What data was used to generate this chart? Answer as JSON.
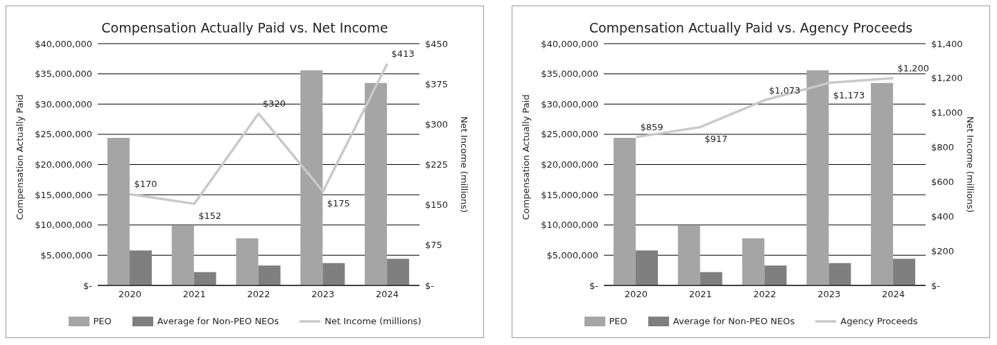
{
  "chart_data": [
    {
      "type": "bar",
      "title": "Compensation Actually Paid vs. Net Income",
      "ylabel": "Compensation Actually Paid",
      "y2label": "Net Income (millions)",
      "categories": [
        "2020",
        "2021",
        "2022",
        "2023",
        "2024"
      ],
      "series": [
        {
          "name": "PEO",
          "color": "#a5a5a5",
          "values": [
            24400000,
            9900000,
            7800000,
            35600000,
            33500000
          ]
        },
        {
          "name": "Average for Non-PEO NEOs",
          "color": "#7f7f7f",
          "values": [
            5800000,
            2200000,
            3300000,
            3700000,
            4400000
          ]
        },
        {
          "name": "Net Income (millions)",
          "type": "line",
          "axis": "y2",
          "color": "#c9c9c9",
          "marker": "none",
          "values": [
            170,
            152,
            320,
            175,
            413
          ],
          "value_labels": [
            "$170",
            "$152",
            "$320",
            "$175",
            "$413"
          ]
        }
      ],
      "ylim": [
        0,
        40000000
      ],
      "yticks": [
        {
          "value": 0,
          "label": "$-"
        },
        {
          "value": 5000000,
          "label": "$5,000,000"
        },
        {
          "value": 10000000,
          "label": "$10,000,000"
        },
        {
          "value": 15000000,
          "label": "$15,000,000"
        },
        {
          "value": 20000000,
          "label": "$20,000,000"
        },
        {
          "value": 25000000,
          "label": "$25,000,000"
        },
        {
          "value": 30000000,
          "label": "$30,000,000"
        },
        {
          "value": 35000000,
          "label": "$35,000,000"
        },
        {
          "value": 40000000,
          "label": "$40,000,000"
        }
      ],
      "y2lim": [
        0,
        450
      ],
      "y2ticks": [
        {
          "value": 0,
          "label": "$-"
        },
        {
          "value": 75,
          "label": "$75"
        },
        {
          "value": 150,
          "label": "$150"
        },
        {
          "value": 225,
          "label": "$225"
        },
        {
          "value": 300,
          "label": "$300"
        },
        {
          "value": 375,
          "label": "$375"
        },
        {
          "value": 450,
          "label": "$450"
        }
      ],
      "grid": "y",
      "legend": "bottom"
    },
    {
      "type": "bar",
      "title": "Compensation Actually Paid vs. Agency Proceeds",
      "ylabel": "Compensation Actually Paid",
      "y2label": "Net Income (millions)",
      "categories": [
        "2020",
        "2021",
        "2022",
        "2023",
        "2024"
      ],
      "series": [
        {
          "name": "PEO",
          "color": "#a5a5a5",
          "values": [
            24400000,
            9900000,
            7800000,
            35600000,
            33500000
          ]
        },
        {
          "name": "Average for Non-PEO NEOs",
          "color": "#7f7f7f",
          "values": [
            5800000,
            2200000,
            3300000,
            3700000,
            4400000
          ]
        },
        {
          "name": "Agency Proceeds",
          "type": "line",
          "axis": "y2",
          "color": "#c9c9c9",
          "marker": "none",
          "values": [
            859,
            917,
            1073,
            1173,
            1200
          ],
          "value_labels": [
            "$859",
            "$917",
            "$1,073",
            "$1,173",
            "$1,200"
          ]
        }
      ],
      "ylim": [
        0,
        40000000
      ],
      "yticks": [
        {
          "value": 0,
          "label": "$-"
        },
        {
          "value": 5000000,
          "label": "$5,000,000"
        },
        {
          "value": 10000000,
          "label": "$10,000,000"
        },
        {
          "value": 15000000,
          "label": "$15,000,000"
        },
        {
          "value": 20000000,
          "label": "$20,000,000"
        },
        {
          "value": 25000000,
          "label": "$25,000,000"
        },
        {
          "value": 30000000,
          "label": "$30,000,000"
        },
        {
          "value": 35000000,
          "label": "$35,000,000"
        },
        {
          "value": 40000000,
          "label": "$40,000,000"
        }
      ],
      "y2lim": [
        0,
        1400
      ],
      "y2ticks": [
        {
          "value": 0,
          "label": "$-"
        },
        {
          "value": 200,
          "label": "$200"
        },
        {
          "value": 400,
          "label": "$400"
        },
        {
          "value": 600,
          "label": "$600"
        },
        {
          "value": 800,
          "label": "$800"
        },
        {
          "value": 1000,
          "label": "$1,000"
        },
        {
          "value": 1200,
          "label": "$1,200"
        },
        {
          "value": 1400,
          "label": "$1,400"
        }
      ],
      "grid": "y",
      "legend": "bottom"
    }
  ]
}
